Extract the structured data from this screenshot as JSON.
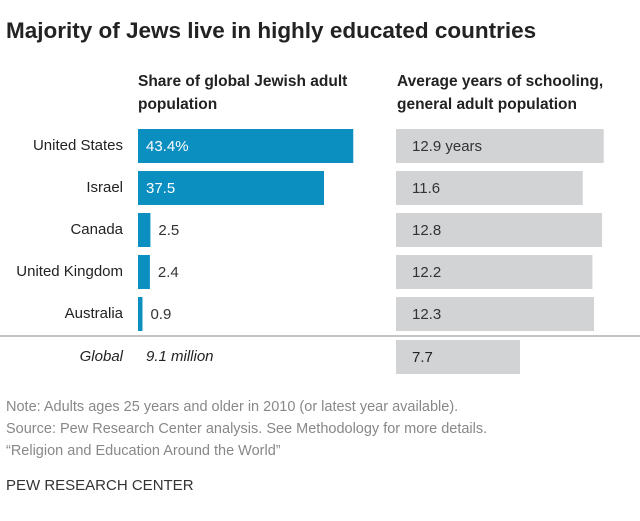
{
  "chart_data": {
    "type": "bar",
    "orientation": "horizontal",
    "title": "Majority of Jews live in highly educated countries",
    "categories": [
      "United States",
      "Israel",
      "Canada",
      "United Kingdom",
      "Australia"
    ],
    "series": [
      {
        "name": "Share of global Jewish adult population",
        "color": "#0b8fc1",
        "values": [
          43.4,
          37.5,
          2.5,
          2.4,
          0.9
        ],
        "value_labels": [
          "43.4%",
          "37.5",
          "2.5",
          "2.4",
          "0.9"
        ]
      },
      {
        "name": "Average years of schooling, general adult population",
        "color": "#d2d3d5",
        "values": [
          12.9,
          11.6,
          12.8,
          12.2,
          12.3
        ],
        "value_labels": [
          "12.9 years",
          "11.6",
          "12.8",
          "12.2",
          "12.3"
        ]
      }
    ],
    "summary": {
      "label": "Global",
      "share_label": "9.1 million",
      "schooling": 7.7
    },
    "note": "Note: Adults ages 25 years and older in 2010 (or latest year available).",
    "source": [
      "Source: Pew Research Center analysis. See Methodology for more details.",
      "“Religion and Education Around the World”"
    ],
    "credit": "PEW RESEARCH CENTER"
  }
}
